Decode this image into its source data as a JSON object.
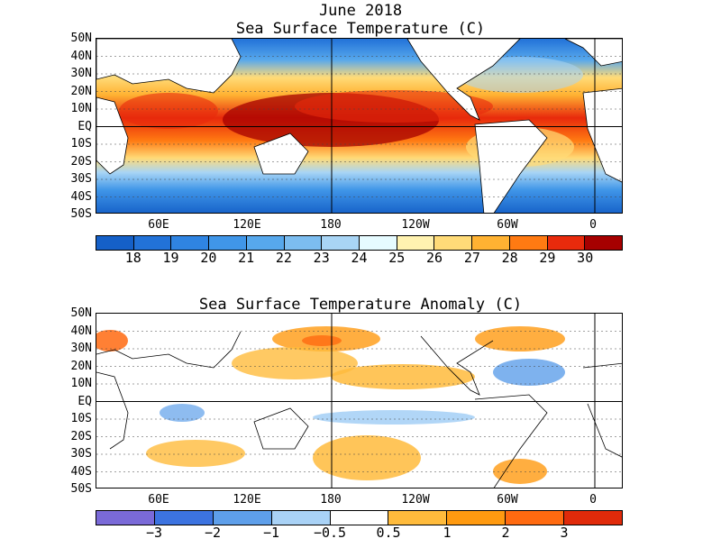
{
  "top_panel": {
    "title_line1": "June 2018",
    "title_line2": "Sea Surface Temperature (C)",
    "colorbar": {
      "labels": [
        "18",
        "19",
        "20",
        "21",
        "22",
        "23",
        "24",
        "25",
        "26",
        "27",
        "28",
        "29",
        "30"
      ],
      "colors": [
        "#1560c8",
        "#2272d8",
        "#2f84e2",
        "#4096e8",
        "#57a8ec",
        "#7cbdf0",
        "#a9d5f5",
        "#e6fbff",
        "#fff2b0",
        "#ffdb78",
        "#ffb232",
        "#ff7a12",
        "#e82a0c",
        "#a60000"
      ]
    }
  },
  "bottom_panel": {
    "title": "Sea Surface Temperature Anomaly (C)",
    "colorbar": {
      "labels": [
        "−3",
        "−2",
        "−1",
        "−0.5",
        "0.5",
        "1",
        "2",
        "3"
      ],
      "colors": [
        "#7a6ad8",
        "#3c73e0",
        "#5e9fea",
        "#a9d2f6",
        "#ffffff",
        "#ffbb3c",
        "#ff9a10",
        "#ff6a10",
        "#e02a0a"
      ]
    }
  },
  "axes": {
    "lat_labels": [
      "50N",
      "40N",
      "30N",
      "20N",
      "10N",
      "EQ",
      "10S",
      "20S",
      "30S",
      "40S",
      "50S"
    ],
    "lon_labels": [
      "60E",
      "120E",
      "180",
      "120W",
      "60W",
      "0"
    ]
  }
}
